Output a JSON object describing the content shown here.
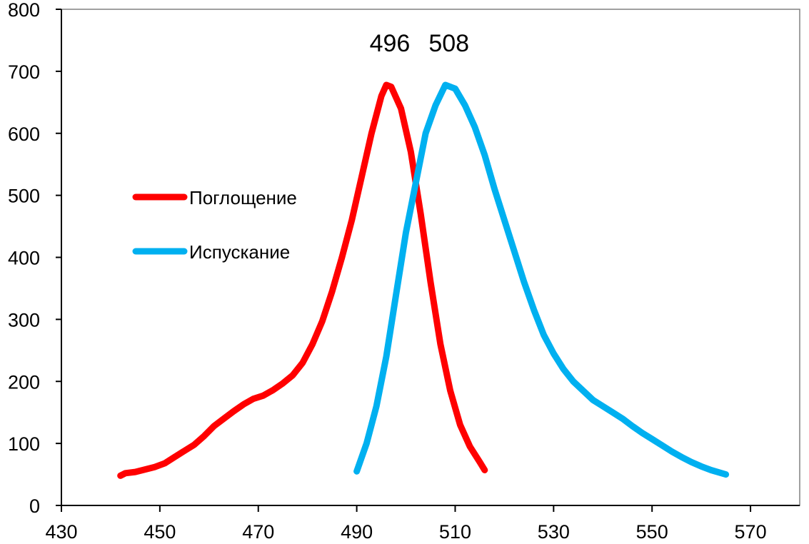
{
  "chart_data": {
    "type": "line",
    "title": "",
    "xlabel": "",
    "ylabel": "",
    "xlim": [
      430,
      580
    ],
    "ylim": [
      0,
      800
    ],
    "x_ticks": [
      430,
      450,
      470,
      490,
      510,
      530,
      550,
      570
    ],
    "y_ticks": [
      0,
      100,
      200,
      300,
      400,
      500,
      600,
      700,
      800
    ],
    "grid": false,
    "legend_position": "left-middle",
    "series": [
      {
        "name": "Поглощение",
        "color": "#ff0000",
        "points": [
          [
            442,
            48
          ],
          [
            443,
            52
          ],
          [
            445,
            54
          ],
          [
            447,
            58
          ],
          [
            449,
            62
          ],
          [
            451,
            68
          ],
          [
            453,
            78
          ],
          [
            455,
            88
          ],
          [
            457,
            98
          ],
          [
            459,
            112
          ],
          [
            461,
            128
          ],
          [
            463,
            140
          ],
          [
            465,
            152
          ],
          [
            467,
            163
          ],
          [
            469,
            172
          ],
          [
            471,
            177
          ],
          [
            473,
            186
          ],
          [
            475,
            197
          ],
          [
            477,
            210
          ],
          [
            479,
            230
          ],
          [
            481,
            260
          ],
          [
            483,
            297
          ],
          [
            485,
            345
          ],
          [
            487,
            400
          ],
          [
            489,
            460
          ],
          [
            491,
            530
          ],
          [
            493,
            600
          ],
          [
            495,
            660
          ],
          [
            496,
            678
          ],
          [
            497,
            675
          ],
          [
            499,
            640
          ],
          [
            501,
            570
          ],
          [
            503,
            470
          ],
          [
            505,
            360
          ],
          [
            507,
            260
          ],
          [
            509,
            185
          ],
          [
            511,
            130
          ],
          [
            513,
            95
          ],
          [
            515,
            70
          ],
          [
            516,
            57
          ]
        ]
      },
      {
        "name": "Испускание",
        "color": "#00b0f0",
        "points": [
          [
            490,
            55
          ],
          [
            492,
            100
          ],
          [
            494,
            160
          ],
          [
            496,
            240
          ],
          [
            498,
            340
          ],
          [
            500,
            440
          ],
          [
            502,
            520
          ],
          [
            504,
            600
          ],
          [
            506,
            645
          ],
          [
            508,
            678
          ],
          [
            509,
            675
          ],
          [
            510,
            672
          ],
          [
            512,
            645
          ],
          [
            514,
            610
          ],
          [
            516,
            565
          ],
          [
            518,
            510
          ],
          [
            520,
            460
          ],
          [
            522,
            410
          ],
          [
            524,
            360
          ],
          [
            526,
            315
          ],
          [
            528,
            275
          ],
          [
            530,
            245
          ],
          [
            532,
            220
          ],
          [
            534,
            200
          ],
          [
            536,
            185
          ],
          [
            538,
            170
          ],
          [
            540,
            160
          ],
          [
            542,
            150
          ],
          [
            544,
            140
          ],
          [
            546,
            128
          ],
          [
            548,
            117
          ],
          [
            550,
            107
          ],
          [
            552,
            97
          ],
          [
            554,
            87
          ],
          [
            556,
            78
          ],
          [
            558,
            70
          ],
          [
            560,
            63
          ],
          [
            562,
            57
          ],
          [
            565,
            50
          ]
        ]
      }
    ],
    "annotations": [
      {
        "text": "496",
        "x": 496
      },
      {
        "text": "508",
        "x": 508
      }
    ]
  }
}
